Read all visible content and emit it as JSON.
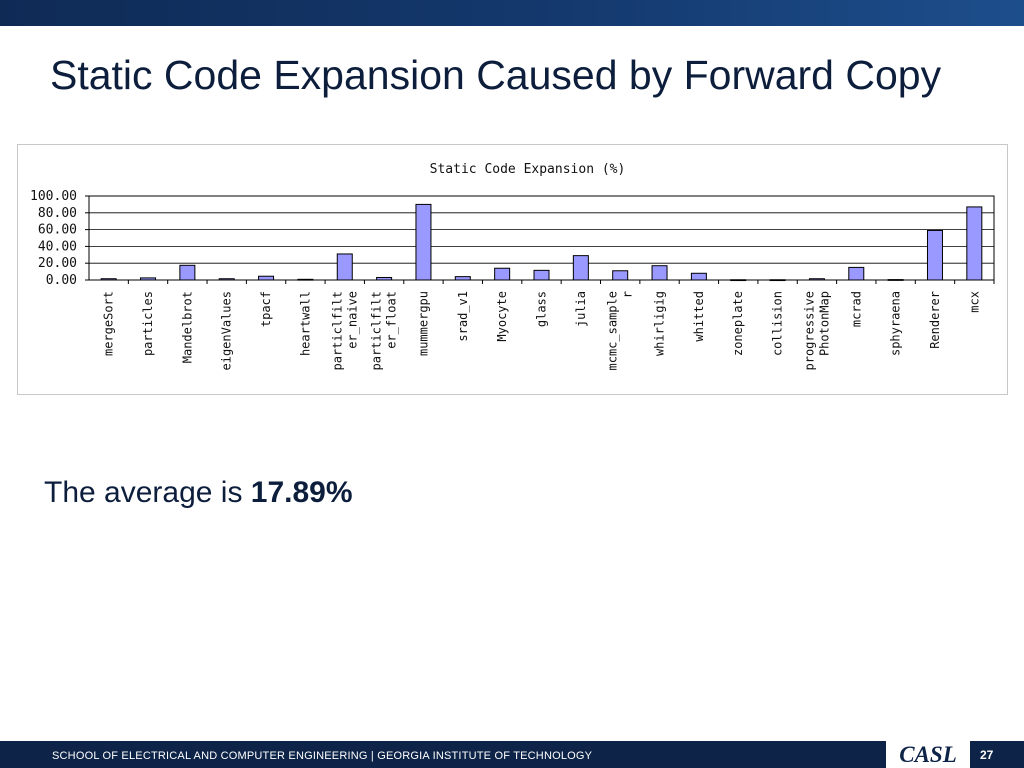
{
  "slide": {
    "title": "Static Code Expansion Caused by Forward Copy",
    "average_prefix": "The average is ",
    "average_value": "17.89%",
    "footer_text": "SCHOOL OF ELECTRICAL AND COMPUTER ENGINEERING | GEORGIA INSTITUTE OF TECHNOLOGY",
    "logo_text": "CASL",
    "page_number": "27"
  },
  "colors": {
    "bar_fill": "#9999ff",
    "bar_stroke": "#000000",
    "header_bar": "#14396e",
    "footer_bar": "#0d2347"
  },
  "chart_data": {
    "type": "bar",
    "title": "Static Code Expansion (%)",
    "xlabel": "",
    "ylabel": "",
    "ylim": [
      0,
      100
    ],
    "yticks": [
      "100.00",
      "80.00",
      "60.00",
      "40.00",
      "20.00",
      "0.00"
    ],
    "grid": true,
    "legend": "none",
    "categories": [
      [
        "mergeSort"
      ],
      [
        "particles"
      ],
      [
        "Mandelbrot"
      ],
      [
        "eigenValues"
      ],
      [
        "tpacf"
      ],
      [
        "heartwall"
      ],
      [
        "particlfilt",
        "er_naive"
      ],
      [
        "particlfilt",
        "er_float"
      ],
      [
        "mummergpu"
      ],
      [
        "srad_v1"
      ],
      [
        "Myocyte"
      ],
      [
        "glass"
      ],
      [
        "julia"
      ],
      [
        "mcmc_sample",
        "r"
      ],
      [
        "whirligig"
      ],
      [
        "whitted"
      ],
      [
        "zoneplate"
      ],
      [
        "collision"
      ],
      [
        "progressive",
        "PhotonMap"
      ],
      [
        "mcrad"
      ],
      [
        "sphyraena"
      ],
      [
        "Renderer"
      ],
      [
        "mcx"
      ]
    ],
    "values": [
      1.5,
      2.5,
      17.5,
      1.5,
      4.5,
      0.8,
      31.0,
      3.0,
      90.0,
      4.0,
      14.0,
      11.5,
      29.0,
      11.0,
      17.0,
      8.0,
      0.3,
      0.3,
      1.5,
      15.0,
      0.5,
      59.0,
      87.0
    ]
  }
}
